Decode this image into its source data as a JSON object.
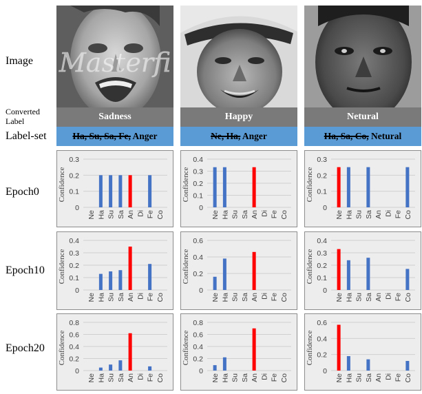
{
  "row_labels": {
    "image": "Image",
    "converted_label": "Converted Label",
    "label_set": "Label-set",
    "epochs": [
      "Epoch0",
      "Epoch10",
      "Epoch20"
    ]
  },
  "columns": [
    {
      "converted_label": "Sadness",
      "label_set_struck": "Ha, Su, Sa, Fe,",
      "label_set_kept": " Anger",
      "watermark": "Masterfi"
    },
    {
      "converted_label": "Happy",
      "label_set_struck": "Ne, Ha,",
      "label_set_kept": " Anger",
      "watermark": ""
    },
    {
      "converted_label": "Netural",
      "label_set_struck": "Ha, Sa, Co,",
      "label_set_kept": " Netural",
      "watermark": ""
    }
  ],
  "colors": {
    "bar": "#4472c4",
    "highlight": "#ff0000",
    "grid": "#d0d0d0",
    "panel_bg": "#ededed",
    "converted_bg": "#7a7a7a",
    "labelset_bg": "#5b9bd5"
  },
  "chart_data": [
    {
      "type": "bar",
      "row": "Epoch0",
      "column": 1,
      "categories": [
        "Ne",
        "Ha",
        "Su",
        "Sa",
        "An",
        "Di",
        "Fe",
        "Co"
      ],
      "values": [
        0,
        0.2,
        0.2,
        0.2,
        0.2,
        0,
        0.2,
        0
      ],
      "highlight": "An",
      "ylabel": "Confidence",
      "ylim": [
        0,
        0.3
      ],
      "yticks": [
        0,
        0.1,
        0.2,
        0.3
      ]
    },
    {
      "type": "bar",
      "row": "Epoch0",
      "column": 2,
      "categories": [
        "Ne",
        "Ha",
        "Su",
        "Sa",
        "An",
        "Di",
        "Fe",
        "Co"
      ],
      "values": [
        0.333,
        0.333,
        0,
        0,
        0.333,
        0,
        0,
        0
      ],
      "highlight": "An",
      "ylabel": "Confidence",
      "ylim": [
        0,
        0.4
      ],
      "yticks": [
        0,
        0.1,
        0.2,
        0.3,
        0.4
      ]
    },
    {
      "type": "bar",
      "row": "Epoch0",
      "column": 3,
      "categories": [
        "Ne",
        "Ha",
        "Su",
        "Sa",
        "An",
        "Di",
        "Fe",
        "Co"
      ],
      "values": [
        0.25,
        0.25,
        0,
        0.25,
        0,
        0,
        0,
        0.25
      ],
      "highlight": "Ne",
      "ylabel": "Confidence",
      "ylim": [
        0,
        0.3
      ],
      "yticks": [
        0,
        0.1,
        0.2,
        0.3
      ]
    },
    {
      "type": "bar",
      "row": "Epoch10",
      "column": 1,
      "categories": [
        "Ne",
        "Ha",
        "Su",
        "Sa",
        "An",
        "Di",
        "Fe",
        "Co"
      ],
      "values": [
        0,
        0.13,
        0.15,
        0.16,
        0.35,
        0,
        0.21,
        0
      ],
      "highlight": "An",
      "ylabel": "Confidence",
      "ylim": [
        0,
        0.4
      ],
      "yticks": [
        0,
        0.1,
        0.2,
        0.3,
        0.4
      ]
    },
    {
      "type": "bar",
      "row": "Epoch10",
      "column": 2,
      "categories": [
        "Ne",
        "Ha",
        "Su",
        "Sa",
        "An",
        "Di",
        "Fe",
        "Co"
      ],
      "values": [
        0.16,
        0.38,
        0,
        0,
        0.46,
        0,
        0,
        0
      ],
      "highlight": "An",
      "ylabel": "Confidence",
      "ylim": [
        0,
        0.6
      ],
      "yticks": [
        0,
        0.2,
        0.4,
        0.6
      ]
    },
    {
      "type": "bar",
      "row": "Epoch10",
      "column": 3,
      "categories": [
        "Ne",
        "Ha",
        "Su",
        "Sa",
        "An",
        "Di",
        "Fe",
        "Co"
      ],
      "values": [
        0.33,
        0.24,
        0,
        0.26,
        0,
        0,
        0,
        0.17
      ],
      "highlight": "Ne",
      "ylabel": "Confidence",
      "ylim": [
        0,
        0.4
      ],
      "yticks": [
        0,
        0.1,
        0.2,
        0.3,
        0.4
      ]
    },
    {
      "type": "bar",
      "row": "Epoch20",
      "column": 1,
      "categories": [
        "Ne",
        "Ha",
        "Su",
        "Sa",
        "An",
        "Di",
        "Fe",
        "Co"
      ],
      "values": [
        0,
        0.05,
        0.1,
        0.17,
        0.62,
        0,
        0.07,
        0
      ],
      "highlight": "An",
      "ylabel": "Confidence",
      "ylim": [
        0,
        0.8
      ],
      "yticks": [
        0,
        0.2,
        0.4,
        0.6,
        0.8
      ]
    },
    {
      "type": "bar",
      "row": "Epoch20",
      "column": 2,
      "categories": [
        "Ne",
        "Ha",
        "Su",
        "Sa",
        "An",
        "Di",
        "Fe",
        "Co"
      ],
      "values": [
        0.09,
        0.22,
        0,
        0,
        0.7,
        0,
        0,
        0
      ],
      "highlight": "An",
      "ylabel": "Confidence",
      "ylim": [
        0,
        0.8
      ],
      "yticks": [
        0,
        0.2,
        0.4,
        0.6,
        0.8
      ]
    },
    {
      "type": "bar",
      "row": "Epoch20",
      "column": 3,
      "categories": [
        "Ne",
        "Ha",
        "Su",
        "Sa",
        "An",
        "Di",
        "Fe",
        "Co"
      ],
      "values": [
        0.57,
        0.18,
        0,
        0.14,
        0,
        0,
        0,
        0.12
      ],
      "highlight": "Ne",
      "ylabel": "Confidence",
      "ylim": [
        0,
        0.6
      ],
      "yticks": [
        0,
        0.2,
        0.4,
        0.6
      ]
    }
  ]
}
